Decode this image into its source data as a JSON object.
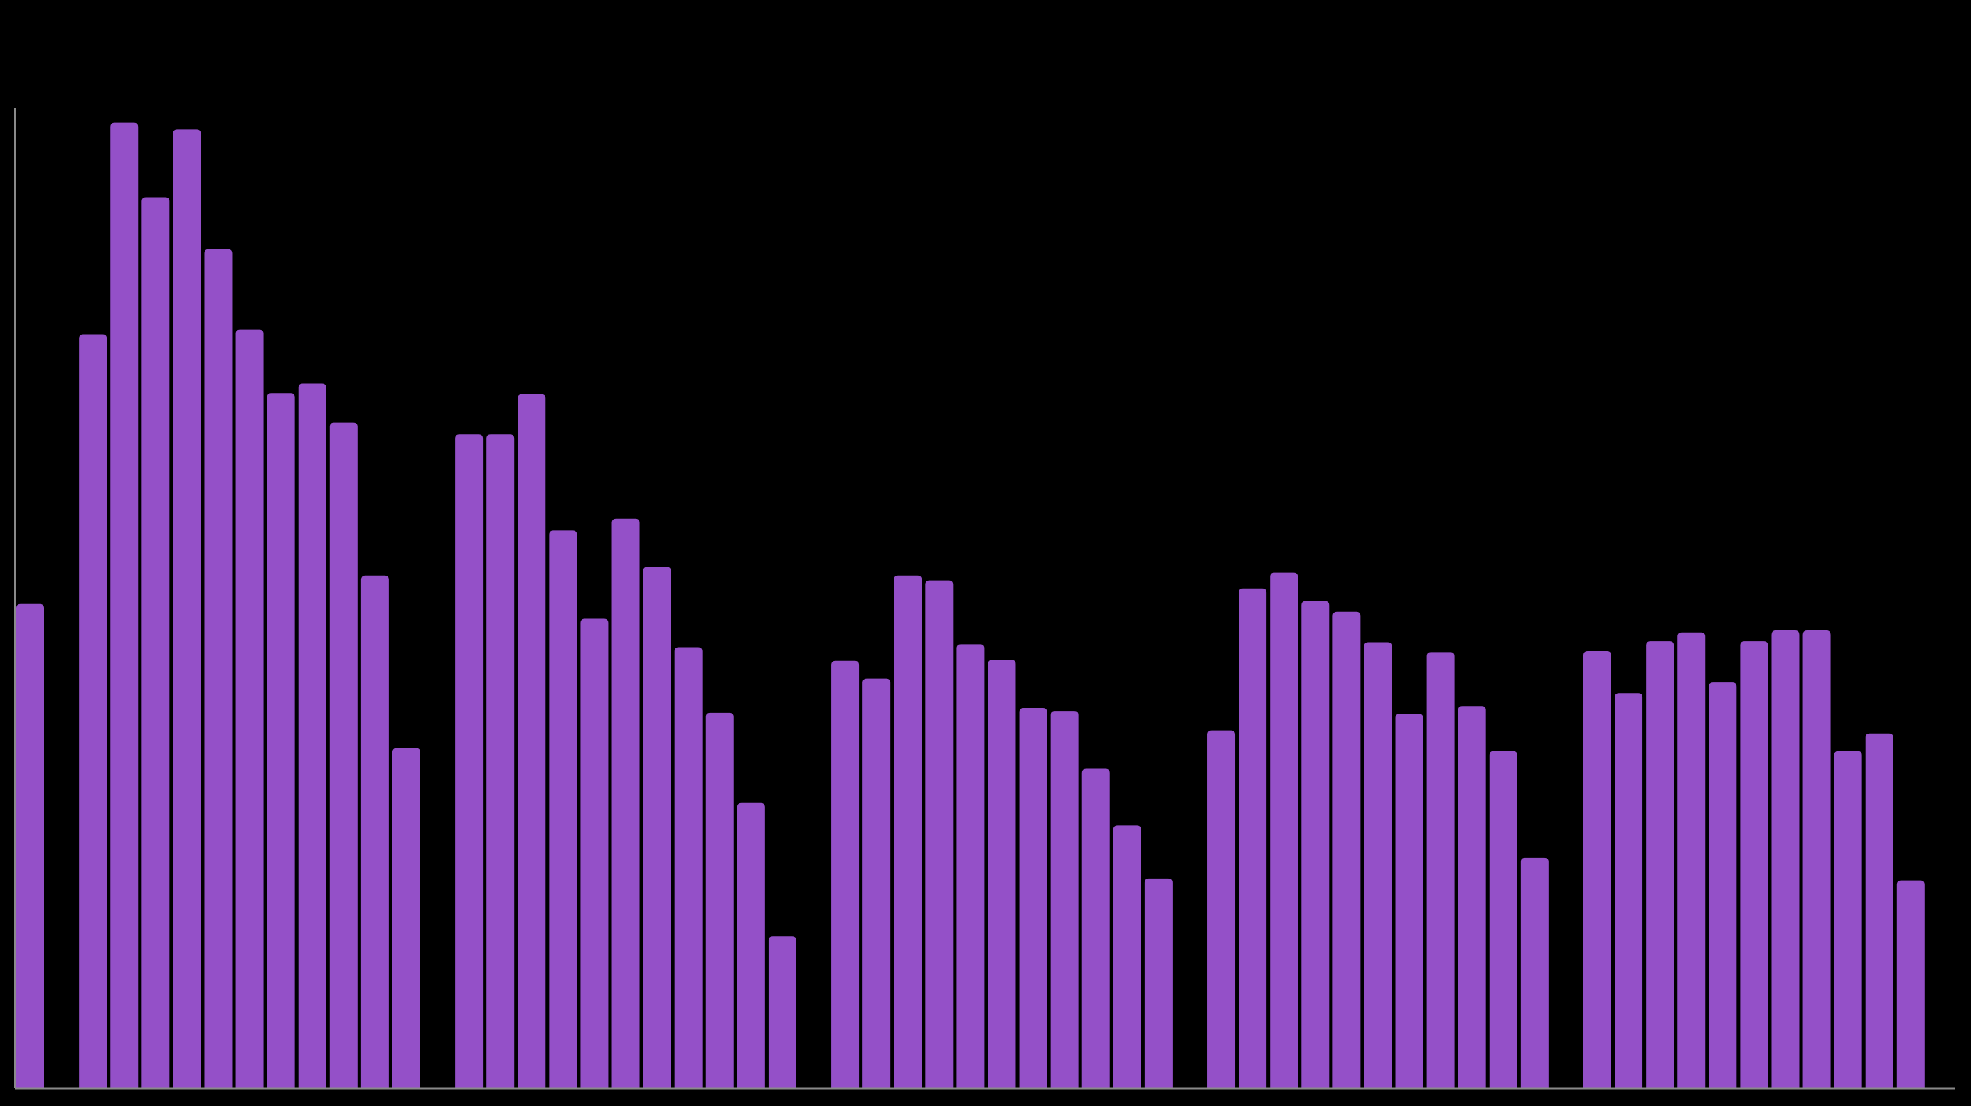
{
  "chart_data": {
    "type": "bar",
    "color": "#9450c8",
    "axis_color": "#8a8a8a",
    "ylim": [
      0,
      100
    ],
    "values": [
      49.4,
      null,
      76.9,
      98.5,
      90.9,
      97.8,
      85.6,
      77.4,
      70.9,
      71.9,
      67.9,
      52.3,
      34.7,
      null,
      66.7,
      66.7,
      70.8,
      56.9,
      47.9,
      58.1,
      53.2,
      45.0,
      38.3,
      29.1,
      15.5,
      null,
      43.6,
      41.8,
      52.3,
      51.8,
      45.3,
      43.7,
      38.8,
      38.5,
      32.6,
      26.8,
      21.4,
      null,
      36.5,
      51.0,
      52.6,
      49.7,
      48.6,
      45.5,
      38.2,
      44.5,
      39.0,
      34.4,
      23.5,
      null,
      44.6,
      40.3,
      45.6,
      46.5,
      41.4,
      45.6,
      46.7,
      46.7,
      34.4,
      36.2,
      21.2
    ]
  }
}
